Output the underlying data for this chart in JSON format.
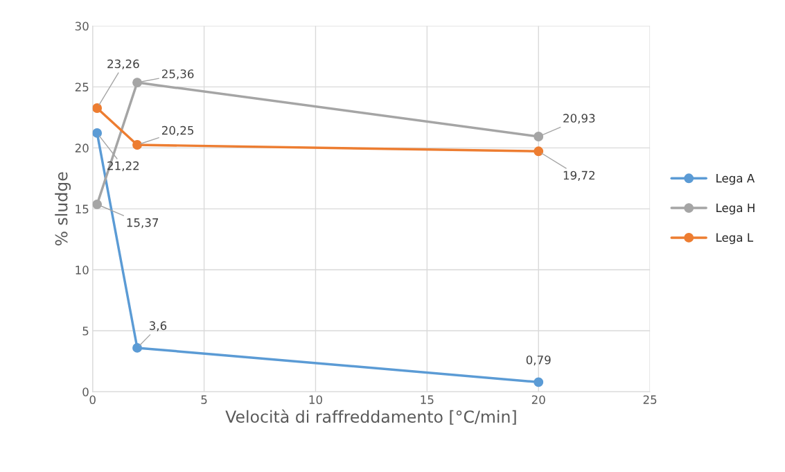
{
  "chart_data": {
    "type": "line",
    "xlabel": "Velocità di raffreddamento [°C/min]",
    "ylabel": "% sludge",
    "x": [
      0.2,
      2,
      20
    ],
    "series": [
      {
        "name": "Lega A",
        "color": "#5b9bd5",
        "values": [
          21.22,
          3.6,
          0.79
        ],
        "value_labels": [
          "21,22",
          "3,6",
          "0,79"
        ]
      },
      {
        "name": "Lega H",
        "color": "#a5a5a5",
        "values": [
          15.37,
          25.36,
          20.93
        ],
        "value_labels": [
          "15,37",
          "25,36",
          "20,93"
        ]
      },
      {
        "name": "Lega L",
        "color": "#ed7d31",
        "values": [
          23.26,
          20.25,
          19.72
        ],
        "value_labels": [
          "23,26",
          "20,25",
          "19,72"
        ]
      }
    ],
    "xlim": [
      0,
      25
    ],
    "xticks": [
      0,
      5,
      10,
      15,
      20,
      25
    ],
    "ylim": [
      0,
      30
    ],
    "yticks": [
      0,
      5,
      10,
      15,
      20,
      25,
      30
    ],
    "grid": true,
    "legend": "right",
    "marker": "circle",
    "line_style": "solid"
  }
}
